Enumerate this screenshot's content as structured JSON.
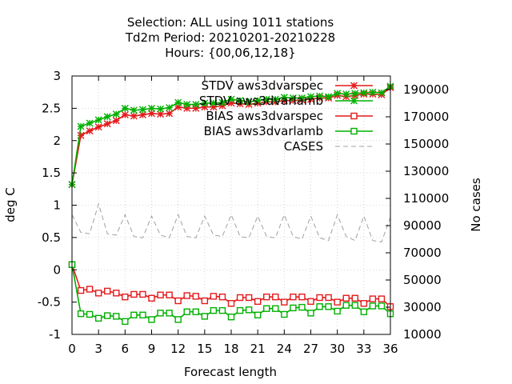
{
  "title_lines": [
    "Selection: ALL using  1011 stations",
    "Td2m   Period: 20210201-20210228",
    "Hours: {00,06,12,18}"
  ],
  "chart_data": {
    "type": "line",
    "xlabel": "Forecast length",
    "ylabel": "deg C",
    "y2label": "No cases",
    "xlim": [
      0,
      36
    ],
    "ylim": [
      -1,
      3
    ],
    "y2lim": [
      10000,
      200000
    ],
    "xticks": [
      0,
      3,
      6,
      9,
      12,
      15,
      18,
      21,
      24,
      27,
      30,
      33,
      36
    ],
    "yticks": [
      -1,
      -0.5,
      0,
      0.5,
      1,
      1.5,
      2,
      2.5,
      3
    ],
    "y2ticks": [
      10000,
      30000,
      50000,
      70000,
      90000,
      110000,
      130000,
      150000,
      170000,
      190000
    ],
    "legend_position": "top-right",
    "x": [
      0,
      1,
      2,
      3,
      4,
      5,
      6,
      7,
      8,
      9,
      10,
      11,
      12,
      13,
      14,
      15,
      16,
      17,
      18,
      19,
      20,
      21,
      22,
      23,
      24,
      25,
      26,
      27,
      28,
      29,
      30,
      31,
      32,
      33,
      34,
      35,
      36
    ],
    "series": [
      {
        "name": "STDV aws3dvarspec",
        "axis": "y1",
        "color": "#e41a1c",
        "marker": "star",
        "dash": "solid",
        "values": [
          1.32,
          2.08,
          2.15,
          2.21,
          2.26,
          2.31,
          2.4,
          2.38,
          2.4,
          2.42,
          2.41,
          2.42,
          2.52,
          2.5,
          2.5,
          2.52,
          2.52,
          2.54,
          2.58,
          2.57,
          2.56,
          2.58,
          2.6,
          2.6,
          2.62,
          2.62,
          2.63,
          2.64,
          2.66,
          2.66,
          2.7,
          2.68,
          2.7,
          2.72,
          2.72,
          2.71,
          2.82
        ]
      },
      {
        "name": "STDV aws3dvarlamb",
        "axis": "y1",
        "color": "#00b000",
        "marker": "star",
        "dash": "solid",
        "values": [
          1.32,
          2.22,
          2.27,
          2.32,
          2.37,
          2.41,
          2.5,
          2.47,
          2.48,
          2.5,
          2.49,
          2.51,
          2.59,
          2.56,
          2.56,
          2.58,
          2.58,
          2.59,
          2.64,
          2.62,
          2.6,
          2.62,
          2.64,
          2.64,
          2.67,
          2.66,
          2.66,
          2.68,
          2.69,
          2.68,
          2.73,
          2.72,
          2.73,
          2.74,
          2.75,
          2.74,
          2.84
        ]
      },
      {
        "name": "BIAS aws3dvarspec",
        "axis": "y1",
        "color": "#e41a1c",
        "marker": "square",
        "dash": "solid",
        "values": [
          0.08,
          -0.32,
          -0.3,
          -0.36,
          -0.33,
          -0.36,
          -0.42,
          -0.38,
          -0.38,
          -0.44,
          -0.39,
          -0.39,
          -0.48,
          -0.4,
          -0.41,
          -0.48,
          -0.41,
          -0.42,
          -0.52,
          -0.43,
          -0.43,
          -0.49,
          -0.42,
          -0.42,
          -0.5,
          -0.42,
          -0.42,
          -0.49,
          -0.43,
          -0.43,
          -0.5,
          -0.44,
          -0.44,
          -0.52,
          -0.45,
          -0.45,
          -0.57
        ]
      },
      {
        "name": "BIAS aws3dvarlamb",
        "axis": "y1",
        "color": "#00b000",
        "marker": "square",
        "dash": "solid",
        "values": [
          0.08,
          -0.68,
          -0.69,
          -0.75,
          -0.71,
          -0.72,
          -0.8,
          -0.7,
          -0.7,
          -0.77,
          -0.67,
          -0.67,
          -0.77,
          -0.65,
          -0.65,
          -0.72,
          -0.63,
          -0.63,
          -0.73,
          -0.63,
          -0.62,
          -0.7,
          -0.6,
          -0.6,
          -0.69,
          -0.59,
          -0.58,
          -0.67,
          -0.57,
          -0.57,
          -0.64,
          -0.55,
          -0.55,
          -0.65,
          -0.56,
          -0.56,
          -0.68
        ]
      },
      {
        "name": "CASES",
        "axis": "y2",
        "color": "#a0a0a0",
        "marker": "none",
        "dash": "dashed",
        "values": [
          98000,
          85000,
          84000,
          106000,
          84000,
          83000,
          98000,
          82000,
          81000,
          97000,
          83000,
          81000,
          98000,
          82000,
          81000,
          97000,
          83000,
          82000,
          98000,
          82000,
          81000,
          97000,
          82000,
          81000,
          98000,
          82000,
          80000,
          97000,
          81000,
          79000,
          98000,
          82000,
          79000,
          97000,
          79000,
          78000,
          96000
        ]
      }
    ]
  }
}
